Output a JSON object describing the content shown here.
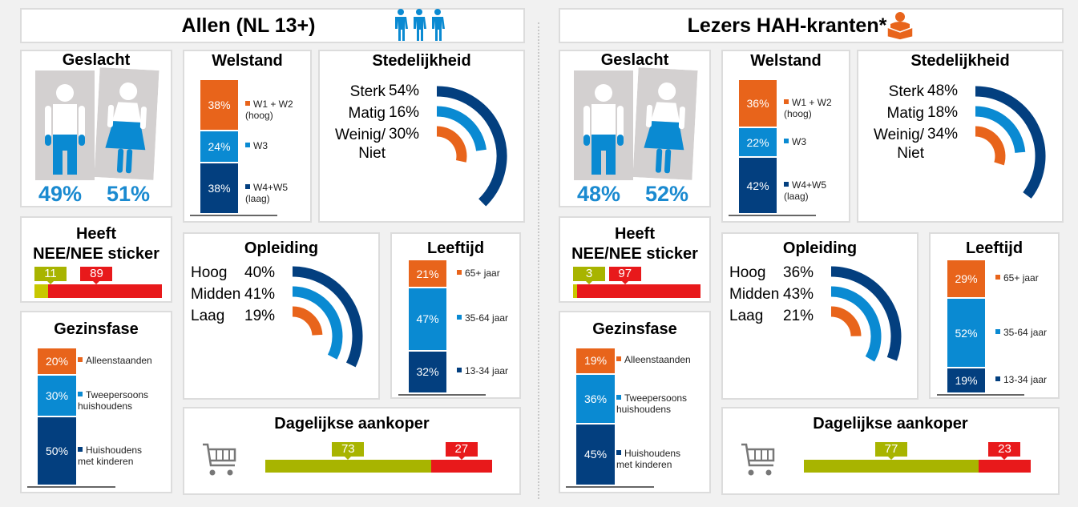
{
  "panels": [
    {
      "title": "Allen (NL 13+)",
      "icon": "people-icon"
    },
    {
      "title": "Lezers HAH-kranten*",
      "icon": "reading-person-icon"
    }
  ],
  "colors": {
    "orange": "#e8641b",
    "blue": "#0a8ad2",
    "dark_blue": "#033f7f",
    "text_blue": "#1a8ad0",
    "green": "#a8b400",
    "yellow": "#c8c800",
    "red": "#e8191b",
    "gray": "#d3d0d0"
  },
  "chart_data": [
    {
      "panel": 0,
      "key": "geslacht",
      "type": "bar",
      "title": "Geslacht",
      "icons": [
        "male-icon",
        "female-icon"
      ],
      "values": [
        49,
        51
      ]
    },
    {
      "panel": 0,
      "key": "welstand",
      "type": "bar",
      "stacked": true,
      "title": "Welstand",
      "categories": [
        "W1 + W2\n(hoog)",
        "W3",
        "W4+W5\n(laag)"
      ],
      "values": [
        38,
        24,
        38
      ]
    },
    {
      "panel": 0,
      "key": "stedelijkheid",
      "type": "bar",
      "orientation": "radial",
      "title": "Stedelijkheid",
      "categories": [
        "Sterk",
        "Matig",
        "Weinig/\nNiet"
      ],
      "values": [
        54,
        16,
        30
      ]
    },
    {
      "panel": 0,
      "key": "sticker",
      "type": "bar",
      "stacked": true,
      "title": "Heeft\nNEE/NEE sticker",
      "values": [
        11,
        89
      ]
    },
    {
      "panel": 0,
      "key": "gezinsfase",
      "type": "bar",
      "stacked": true,
      "title": "Gezinsfase",
      "categories": [
        "Alleenstaanden",
        "Tweepersoons\nhuishoudens",
        "Huishoudens\nmet kinderen"
      ],
      "values": [
        20,
        30,
        50
      ]
    },
    {
      "panel": 0,
      "key": "opleiding",
      "type": "bar",
      "orientation": "radial",
      "title": "Opleiding",
      "categories": [
        "Hoog",
        "Midden",
        "Laag"
      ],
      "values": [
        40,
        41,
        19
      ]
    },
    {
      "panel": 0,
      "key": "leeftijd",
      "type": "bar",
      "stacked": true,
      "title": "Leeftijd",
      "categories": [
        "65+ jaar",
        "35-64 jaar",
        "13-34 jaar"
      ],
      "values": [
        21,
        47,
        32
      ]
    },
    {
      "panel": 0,
      "key": "aankoper",
      "type": "bar",
      "stacked": true,
      "title": "Dagelijkse aankoper",
      "icon": "shopping-cart-icon",
      "values": [
        73,
        27
      ]
    },
    {
      "panel": 1,
      "key": "geslacht",
      "type": "bar",
      "title": "Geslacht",
      "icons": [
        "male-icon",
        "female-icon"
      ],
      "values": [
        48,
        52
      ]
    },
    {
      "panel": 1,
      "key": "welstand",
      "type": "bar",
      "stacked": true,
      "title": "Welstand",
      "categories": [
        "W1 + W2\n(hoog)",
        "W3",
        "W4+W5\n(laag)"
      ],
      "values": [
        36,
        22,
        42
      ]
    },
    {
      "panel": 1,
      "key": "stedelijkheid",
      "type": "bar",
      "orientation": "radial",
      "title": "Stedelijkheid",
      "categories": [
        "Sterk",
        "Matig",
        "Weinig/\nNiet"
      ],
      "values": [
        48,
        18,
        34
      ]
    },
    {
      "panel": 1,
      "key": "sticker",
      "type": "bar",
      "stacked": true,
      "title": "Heeft\nNEE/NEE sticker",
      "values": [
        3,
        97
      ]
    },
    {
      "panel": 1,
      "key": "gezinsfase",
      "type": "bar",
      "stacked": true,
      "title": "Gezinsfase",
      "categories": [
        "Alleenstaanden",
        "Tweepersoons\nhuishoudens",
        "Huishoudens\nmet kinderen"
      ],
      "values": [
        19,
        36,
        45
      ]
    },
    {
      "panel": 1,
      "key": "opleiding",
      "type": "bar",
      "orientation": "radial",
      "title": "Opleiding",
      "categories": [
        "Hoog",
        "Midden",
        "Laag"
      ],
      "values": [
        36,
        43,
        21
      ]
    },
    {
      "panel": 1,
      "key": "leeftijd",
      "type": "bar",
      "stacked": true,
      "title": "Leeftijd",
      "categories": [
        "65+ jaar",
        "35-64 jaar",
        "13-34 jaar"
      ],
      "values": [
        29,
        52,
        19
      ]
    },
    {
      "panel": 1,
      "key": "aankoper",
      "type": "bar",
      "stacked": true,
      "title": "Dagelijkse aankoper",
      "icon": "shopping-cart-icon",
      "values": [
        77,
        23
      ]
    }
  ]
}
